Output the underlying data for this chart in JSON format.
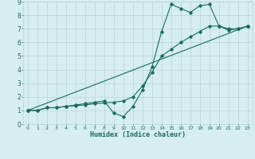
{
  "xlabel": "Humidex (Indice chaleur)",
  "background_color": "#d6eeee",
  "grid_color": "#b8d4d4",
  "line_color": "#1a6b5a",
  "xlim": [
    -0.5,
    23.5
  ],
  "ylim": [
    0,
    9
  ],
  "xticks": [
    0,
    1,
    2,
    3,
    4,
    5,
    6,
    7,
    8,
    9,
    10,
    11,
    12,
    13,
    14,
    15,
    16,
    17,
    18,
    19,
    20,
    21,
    22,
    23
  ],
  "yticks": [
    0,
    1,
    2,
    3,
    4,
    5,
    6,
    7,
    8,
    9
  ],
  "line1_x": [
    0,
    1,
    2,
    3,
    4,
    5,
    6,
    7,
    8,
    9,
    10,
    11,
    12,
    13,
    14,
    15,
    16,
    17,
    18,
    19,
    20,
    21,
    22,
    23
  ],
  "line1_y": [
    1.0,
    1.0,
    1.2,
    1.2,
    1.3,
    1.4,
    1.5,
    1.6,
    1.7,
    0.8,
    0.55,
    1.3,
    2.5,
    4.2,
    6.8,
    8.8,
    8.5,
    8.2,
    8.7,
    8.8,
    7.2,
    6.9,
    7.0,
    7.2
  ],
  "line2_x": [
    0,
    1,
    2,
    3,
    4,
    5,
    6,
    7,
    8,
    9,
    10,
    11,
    12,
    13,
    14,
    15,
    16,
    17,
    18,
    19,
    20,
    21,
    22,
    23
  ],
  "line2_y": [
    1.0,
    1.0,
    1.2,
    1.2,
    1.3,
    1.35,
    1.4,
    1.5,
    1.55,
    1.6,
    1.7,
    2.0,
    2.8,
    3.8,
    5.0,
    5.5,
    6.0,
    6.4,
    6.8,
    7.2,
    7.2,
    7.0,
    7.0,
    7.2
  ],
  "line3_x": [
    0,
    23
  ],
  "line3_y": [
    1.0,
    7.2
  ]
}
